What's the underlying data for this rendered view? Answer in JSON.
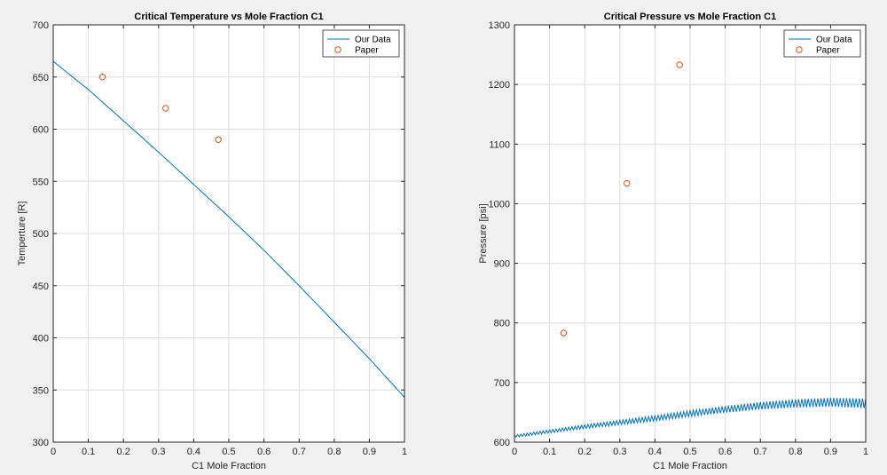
{
  "chart_data": [
    {
      "type": "line",
      "title": "Critical Temperature vs Mole Fraction C1",
      "xlabel": "C1 Mole Fraction",
      "ylabel": "Temperture [R]",
      "xlim": [
        0,
        1
      ],
      "ylim": [
        300,
        700
      ],
      "xticks": [
        0,
        0.1,
        0.2,
        0.3,
        0.4,
        0.5,
        0.6,
        0.7,
        0.8,
        0.9,
        1
      ],
      "yticks": [
        300,
        350,
        400,
        450,
        500,
        550,
        600,
        650,
        700
      ],
      "grid": true,
      "legend": "top-right",
      "series": [
        {
          "name": "Our Data",
          "kind": "line",
          "color": "#0072bd",
          "x": [
            0,
            0.1,
            0.2,
            0.3,
            0.4,
            0.5,
            0.6,
            0.7,
            0.8,
            0.9,
            1
          ],
          "y": [
            665,
            638,
            608,
            578,
            547,
            516,
            484,
            450,
            415,
            380,
            343
          ]
        },
        {
          "name": "Paper",
          "kind": "scatter",
          "color": "#d95319",
          "x": [
            0.14,
            0.32,
            0.47
          ],
          "y": [
            650,
            620,
            590
          ]
        }
      ]
    },
    {
      "type": "line",
      "title": "Critical Pressure vs Mole Fraction C1",
      "xlabel": "C1 Mole Fraction",
      "ylabel": "Pressure [psi]",
      "xlim": [
        0,
        1
      ],
      "ylim": [
        600,
        1300
      ],
      "xticks": [
        0,
        0.1,
        0.2,
        0.3,
        0.4,
        0.5,
        0.6,
        0.7,
        0.8,
        0.9,
        1
      ],
      "yticks": [
        600,
        700,
        800,
        900,
        1000,
        1100,
        1200,
        1300
      ],
      "grid": true,
      "legend": "top-right",
      "series": [
        {
          "name": "Our Data",
          "kind": "line",
          "color": "#0072bd",
          "x": [
            0,
            0.1,
            0.2,
            0.3,
            0.4,
            0.5,
            0.6,
            0.7,
            0.8,
            0.9,
            1
          ],
          "y": [
            610,
            618,
            626,
            633,
            640,
            648,
            655,
            661,
            665,
            667,
            665
          ]
        },
        {
          "name": "Paper",
          "kind": "scatter",
          "color": "#d95319",
          "x": [
            0.14,
            0.32,
            0.47
          ],
          "y": [
            783,
            1034,
            1233
          ]
        }
      ]
    }
  ]
}
